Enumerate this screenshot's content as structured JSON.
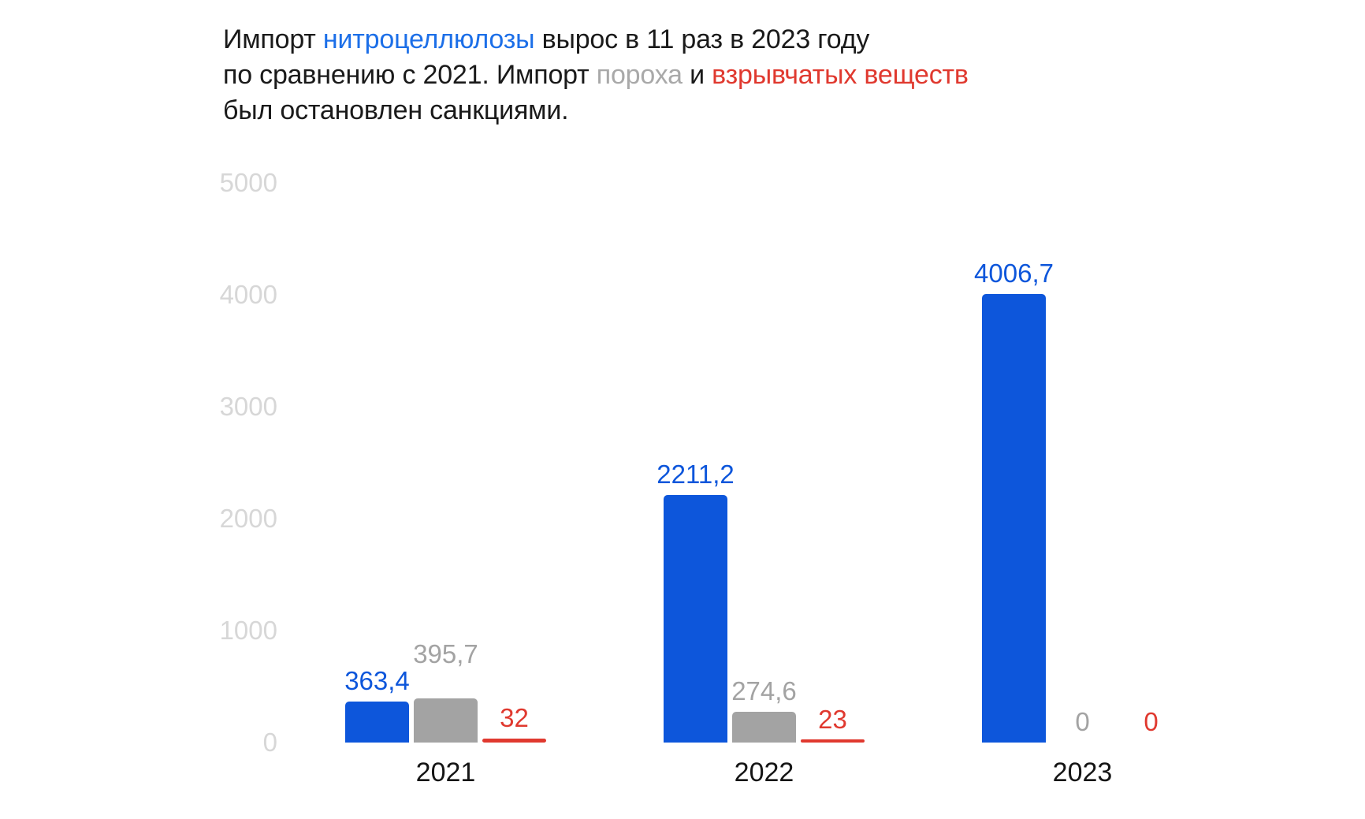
{
  "page": {
    "background": "#ffffff"
  },
  "title": {
    "plain_text": "Импорт нитроцеллюлозы вырос в 11 раз в 2023 году по сравнению с 2021. Импорт пороха и взрывчатых веществ был остановлен санкциями.",
    "segments": [
      {
        "text": "Импорт ",
        "color": "#1a1a1a"
      },
      {
        "text": "нитроцеллюлозы",
        "color": "#1c6fe8"
      },
      {
        "text": " вырос в 11 раз в 2023 году\n",
        "color": "#1a1a1a"
      },
      {
        "text": "по сравнению с 2021. Импорт ",
        "color": "#1a1a1a"
      },
      {
        "text": "пороха",
        "color": "#a9a9a9"
      },
      {
        "text": " и ",
        "color": "#1a1a1a"
      },
      {
        "text": "взрывчатых веществ",
        "color": "#e0392f"
      },
      {
        "text": "\nбыл остановлен санкциями.",
        "color": "#1a1a1a"
      }
    ]
  },
  "chart_data": {
    "type": "bar",
    "categories": [
      "2021",
      "2022",
      "2023"
    ],
    "series": [
      {
        "key": "nitrocellulose",
        "name": "нитроцеллюлоза",
        "color": "#0d56db",
        "values": [
          363.4,
          2211.2,
          4006.7
        ],
        "labels": [
          "363,4",
          "2211,2",
          "4006,7"
        ]
      },
      {
        "key": "gunpowder",
        "name": "порох",
        "color": "#a3a3a3",
        "values": [
          395.7,
          274.6,
          0
        ],
        "labels": [
          "395,7",
          "274,6",
          "0"
        ]
      },
      {
        "key": "explosives",
        "name": "взрывчатые вещества",
        "color": "#e0392f",
        "values": [
          32,
          23,
          0
        ],
        "labels": [
          "32",
          "23",
          "0"
        ]
      }
    ],
    "yticks": [
      0,
      1000,
      2000,
      3000,
      4000,
      5000
    ],
    "ylim": [
      0,
      5000
    ],
    "xlabel": "",
    "ylabel": "",
    "grid": false,
    "legend_position": "none",
    "colors": {
      "axis_tick_label": "#d7d7d7",
      "x_axis_label": "#151515"
    }
  }
}
